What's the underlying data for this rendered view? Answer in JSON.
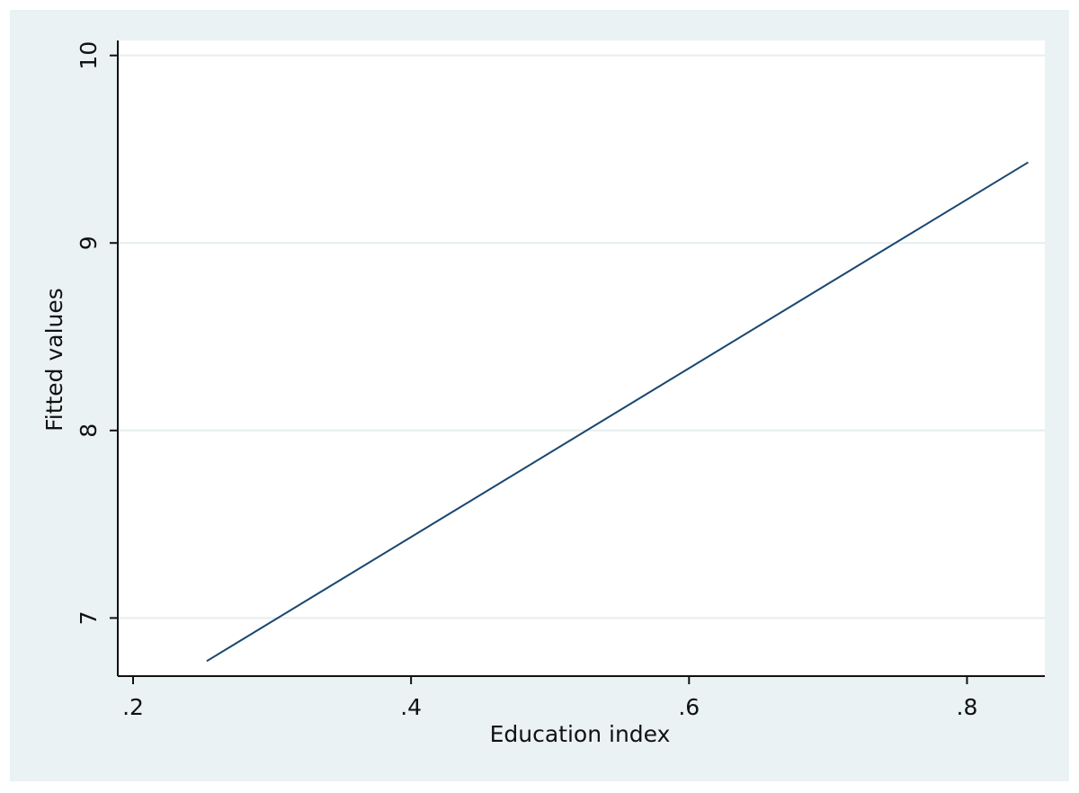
{
  "chart_data": {
    "type": "line",
    "x_label": "Education index",
    "y_label": "Fitted values",
    "x": [
      0.253,
      0.844
    ],
    "series": [
      {
        "color": "#1a476f",
        "values": [
          6.77,
          9.43
        ]
      }
    ],
    "xlim": [
      0.189,
      0.856
    ],
    "xticks": [
      {
        "value": 0.2,
        "label": ".2"
      },
      {
        "value": 0.4,
        "label": ".4"
      },
      {
        "value": 0.6,
        "label": ".6"
      },
      {
        "value": 0.8,
        "label": ".8"
      }
    ],
    "ylim": [
      6.69,
      10.08
    ],
    "yticks": [
      7,
      8,
      9,
      10
    ],
    "grid": true
  }
}
